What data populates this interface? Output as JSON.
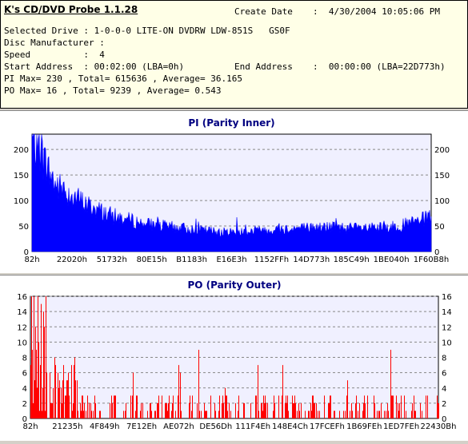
{
  "header": {
    "app_title": "K's CD/DVD Probe 1.1.28",
    "create_date_label": "Create Date",
    "create_date_value": ":  4/30/2004 10:05:06 PM",
    "selected_drive": "Selected Drive : 1-0-0-0 LITE-ON DVDRW LDW-851S   GS0F",
    "disc_manufacturer": "Disc Manufacturer :",
    "speed": "Speed          :  4",
    "start_address": "Start Address  : 00:02:00 (LBA=0h)",
    "end_address_label": "End Address",
    "end_address_value": ":  00:00:00 (LBA=22D773h)",
    "pi_summary": "PI Max= 230 , Total= 615636 , Average= 36.165",
    "po_summary": "PO Max= 16 , Total= 9239 , Average= 0.543"
  },
  "colors": {
    "pi_fill": "#0000ff",
    "po_fill": "#ff0000",
    "title_color": "#000080",
    "plot_bg": "#f0f0ff"
  },
  "chart_data": [
    {
      "type": "bar",
      "title": "PI (Parity Inner)",
      "ylim": [
        0,
        230
      ],
      "yticks": [
        "0",
        "50",
        "100",
        "150",
        "200"
      ],
      "x_tick_labels": [
        "82h",
        "22020h",
        "51732h",
        "80E15h",
        "B1183h",
        "E16E3h",
        "1152FFh",
        "14D773h",
        "185C49h",
        "1BE040h",
        "1F60B8h"
      ],
      "grid": true,
      "envelope": [
        [
          0,
          220
        ],
        [
          0.02,
          200
        ],
        [
          0.04,
          160
        ],
        [
          0.06,
          130
        ],
        [
          0.1,
          110
        ],
        [
          0.14,
          90
        ],
        [
          0.2,
          70
        ],
        [
          0.28,
          55
        ],
        [
          0.35,
          48
        ],
        [
          0.42,
          42
        ],
        [
          0.48,
          38
        ],
        [
          0.55,
          40
        ],
        [
          0.62,
          44
        ],
        [
          0.7,
          47
        ],
        [
          0.76,
          48
        ],
        [
          0.82,
          45
        ],
        [
          0.88,
          46
        ],
        [
          0.93,
          52
        ],
        [
          0.97,
          60
        ],
        [
          1,
          68
        ]
      ]
    },
    {
      "type": "bar",
      "title": "PO (Parity Outer)",
      "ylim": [
        0,
        16
      ],
      "yticks": [
        "0",
        "2",
        "4",
        "6",
        "8",
        "10",
        "12",
        "14",
        "16"
      ],
      "x_tick_labels": [
        "82h",
        "21235h",
        "4F849h",
        "7E12Eh",
        "AE072h",
        "DE56Dh",
        "111F4Eh",
        "148E4Ch",
        "17FCEFh",
        "1B69FEh",
        "1ED7FEh",
        "22430Bh"
      ],
      "grid": true
    }
  ]
}
